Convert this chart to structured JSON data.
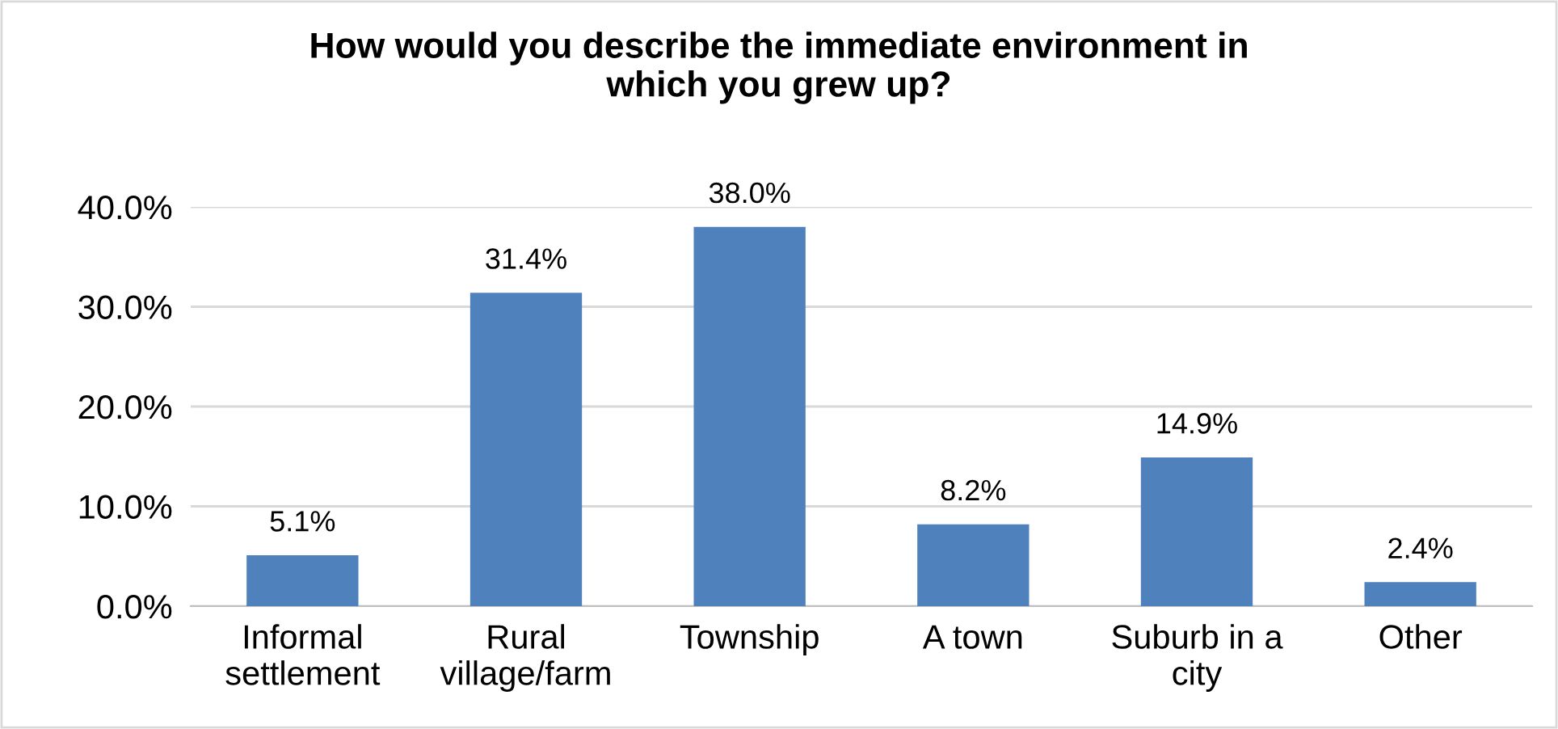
{
  "chart_data": {
    "type": "bar",
    "title": "How would you describe the immediate environment in\nwhich you grew up?",
    "categories": [
      "Informal\nsettlement",
      "Rural\nvillage/farm",
      "Township",
      "A town",
      "Suburb in a\ncity",
      "Other"
    ],
    "values": [
      5.1,
      31.4,
      38.0,
      8.2,
      14.9,
      2.4
    ],
    "value_labels": [
      "5.1%",
      "31.4%",
      "38.0%",
      "8.2%",
      "14.9%",
      "2.4%"
    ],
    "color": "#4f81bd",
    "ylim": [
      0,
      40
    ],
    "yticks": [
      {
        "value": 0,
        "label": "0.0%"
      },
      {
        "value": 10,
        "label": "10.0%"
      },
      {
        "value": 20,
        "label": "20.0%"
      },
      {
        "value": 30,
        "label": "30.0%"
      },
      {
        "value": 40,
        "label": "40.0%"
      }
    ],
    "grid": "y",
    "legend": false
  }
}
